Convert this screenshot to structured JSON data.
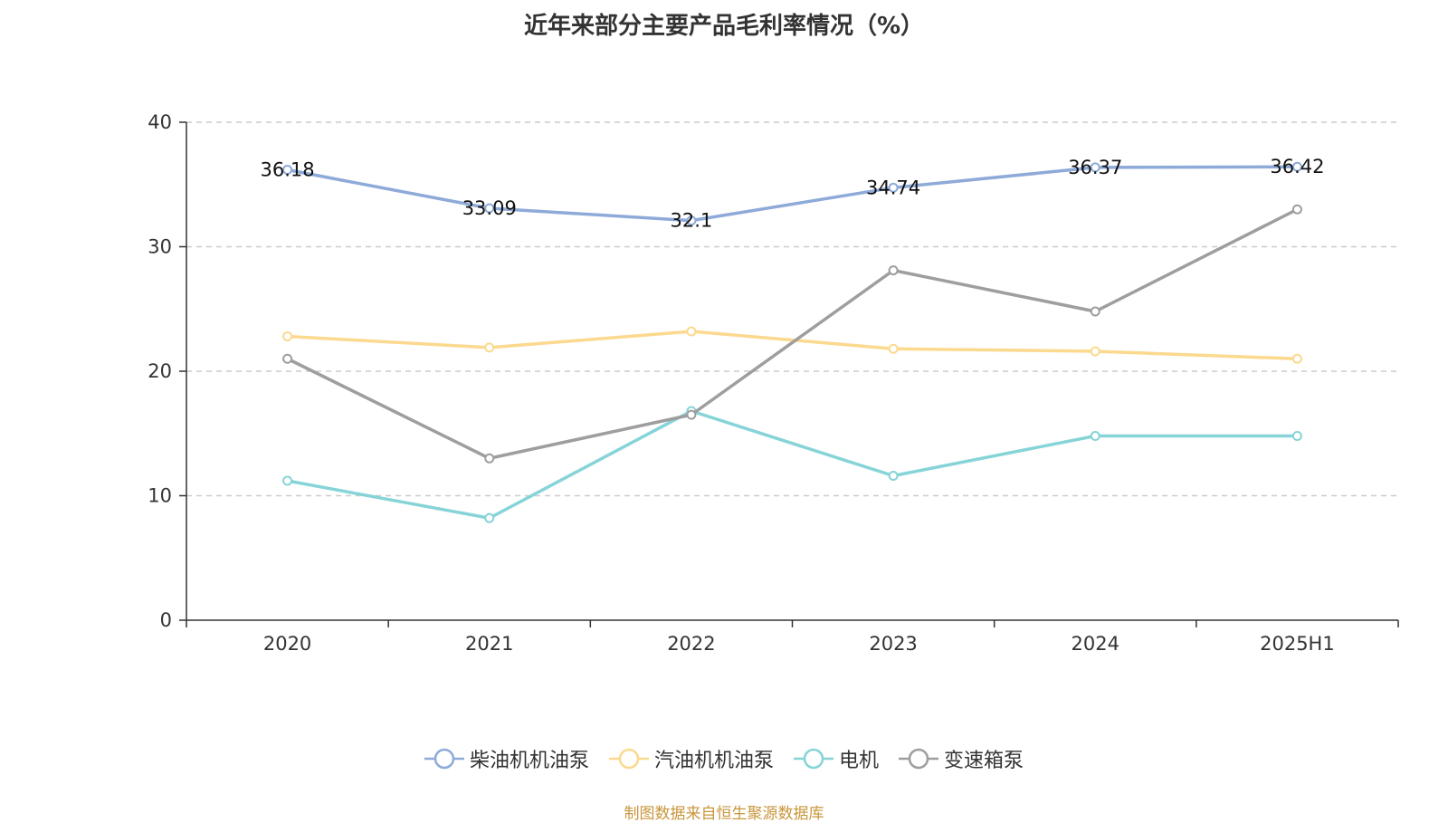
{
  "chart_data": {
    "type": "line",
    "title": "近年来部分主要产品毛利率情况（%）",
    "categories": [
      "2020",
      "2021",
      "2022",
      "2023",
      "2024",
      "2025H1"
    ],
    "ylim": [
      0,
      40
    ],
    "yticks": [
      0,
      10,
      20,
      30,
      40
    ],
    "grid": true,
    "legend_position": "bottom",
    "series": [
      {
        "name": "柴油机机油泵",
        "color": "#8eaad8",
        "values": [
          36.18,
          33.09,
          32.1,
          34.74,
          36.37,
          36.42
        ],
        "labels": [
          "36.18",
          "33.09",
          "32.1",
          "34.74",
          "36.37",
          "36.42"
        ]
      },
      {
        "name": "汽油机机油泵",
        "color": "#fbd98e",
        "values": [
          22.8,
          21.9,
          23.2,
          21.8,
          21.6,
          21.0
        ]
      },
      {
        "name": "电机",
        "color": "#86d4d8",
        "values": [
          11.2,
          8.2,
          16.8,
          11.6,
          14.8,
          14.8
        ]
      },
      {
        "name": "变速箱泵",
        "color": "#9e9e9e",
        "values": [
          21.0,
          13.0,
          16.5,
          28.1,
          24.8,
          33.0
        ]
      }
    ]
  },
  "footer": {
    "source": "制图数据来自恒生聚源数据库"
  }
}
